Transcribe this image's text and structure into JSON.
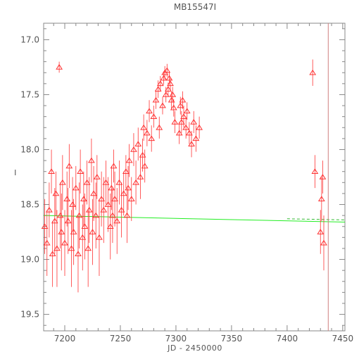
{
  "chart_data": {
    "type": "scatter",
    "title": "MB15547I",
    "xlabel": "JD - 2450000",
    "ylabel": "I",
    "xlim": [
      7181,
      7452
    ],
    "ylim": [
      19.65,
      16.85
    ],
    "y_inverted": true,
    "xticks": [
      7200,
      7250,
      7300,
      7350,
      7400,
      7450
    ],
    "xtick_labels": [
      "7200",
      "7250",
      "7300",
      "7350",
      "7400",
      "7450"
    ],
    "yticks": [
      17.0,
      17.5,
      18.0,
      18.5,
      19.0,
      19.5
    ],
    "ytick_labels": [
      "17.0",
      "17.5",
      "18.0",
      "18.5",
      "19.0",
      "19.5"
    ],
    "grid": false,
    "colors": {
      "data": "#ff3333",
      "model": "#22ee22",
      "model_alt": "#33bb33",
      "marker_line": "#d08080",
      "axes": "#888888"
    },
    "series": [
      {
        "marker": "triangle",
        "x": [
          7182,
          7184,
          7186,
          7188,
          7189,
          7191,
          7192,
          7193,
          7195,
          7196,
          7197,
          7198,
          7200,
          7202,
          7203,
          7204,
          7206,
          7207,
          7208,
          7210,
          7212,
          7213,
          7214,
          7216,
          7217,
          7218,
          7220,
          7221,
          7222,
          7224,
          7225,
          7226,
          7228,
          7229,
          7231,
          7233,
          7235,
          7237,
          7239,
          7241,
          7242,
          7243,
          7244,
          7245,
          7247,
          7249,
          7251,
          7253,
          7255,
          7256,
          7257,
          7258,
          7260,
          7262,
          7264,
          7266,
          7268,
          7270,
          7271,
          7272,
          7274,
          7276,
          7278,
          7280,
          7282,
          7284,
          7285,
          7286,
          7288,
          7289,
          7290,
          7291,
          7292,
          7293,
          7294,
          7295,
          7296,
          7297,
          7298,
          7299,
          7303,
          7304,
          7305,
          7306,
          7307,
          7309,
          7310,
          7312,
          7314,
          7316,
          7318,
          7321,
          7423,
          7425,
          7430,
          7431,
          7432,
          7433
        ],
        "y": [
          18.7,
          18.85,
          18.55,
          18.2,
          18.95,
          18.65,
          18.4,
          18.9,
          17.25,
          18.6,
          18.75,
          18.3,
          18.85,
          18.45,
          18.65,
          18.15,
          18.9,
          18.5,
          18.75,
          18.35,
          18.95,
          18.6,
          18.2,
          18.8,
          18.45,
          18.7,
          18.3,
          18.9,
          18.55,
          18.1,
          18.75,
          18.4,
          18.6,
          18.25,
          18.8,
          18.45,
          18.55,
          18.3,
          18.5,
          18.7,
          18.35,
          18.6,
          18.15,
          18.45,
          18.65,
          18.3,
          18.55,
          18.4,
          18.2,
          18.6,
          18.35,
          18.1,
          18.45,
          18.0,
          18.3,
          17.95,
          18.25,
          18.05,
          17.8,
          18.15,
          17.85,
          17.65,
          17.9,
          17.7,
          17.55,
          17.45,
          17.8,
          17.4,
          17.6,
          17.35,
          17.3,
          17.5,
          17.28,
          17.45,
          17.35,
          17.4,
          17.55,
          17.5,
          17.62,
          17.75,
          17.85,
          17.6,
          17.75,
          17.55,
          17.7,
          17.8,
          17.65,
          17.85,
          17.95,
          17.75,
          17.9,
          17.8,
          17.3,
          18.2,
          18.75,
          18.45,
          18.25,
          18.85
        ],
        "err": [
          0.25,
          0.3,
          0.25,
          0.2,
          0.3,
          0.3,
          0.2,
          0.35,
          0.05,
          0.3,
          0.35,
          0.25,
          0.3,
          0.25,
          0.3,
          0.2,
          0.35,
          0.25,
          0.3,
          0.2,
          0.35,
          0.3,
          0.2,
          0.3,
          0.25,
          0.3,
          0.2,
          0.35,
          0.3,
          0.2,
          0.3,
          0.25,
          0.3,
          0.2,
          0.35,
          0.25,
          0.3,
          0.2,
          0.25,
          0.3,
          0.2,
          0.25,
          0.15,
          0.25,
          0.3,
          0.2,
          0.25,
          0.2,
          0.15,
          0.25,
          0.2,
          0.15,
          0.2,
          0.15,
          0.2,
          0.15,
          0.2,
          0.15,
          0.12,
          0.15,
          0.12,
          0.1,
          0.12,
          0.1,
          0.08,
          0.08,
          0.1,
          0.07,
          0.08,
          0.06,
          0.06,
          0.07,
          0.06,
          0.06,
          0.06,
          0.06,
          0.08,
          0.07,
          0.08,
          0.1,
          0.1,
          0.08,
          0.1,
          0.08,
          0.1,
          0.1,
          0.08,
          0.1,
          0.12,
          0.1,
          0.12,
          0.1,
          0.12,
          0.15,
          0.2,
          0.2,
          0.15,
          0.25
        ]
      }
    ],
    "model_line": {
      "x": [
        7181,
        7452
      ],
      "y": [
        18.6,
        18.66
      ]
    },
    "model_line_alt": {
      "x": [
        7400,
        7452
      ],
      "y": [
        18.63,
        18.64
      ]
    },
    "vertical_line_x": 7437
  }
}
